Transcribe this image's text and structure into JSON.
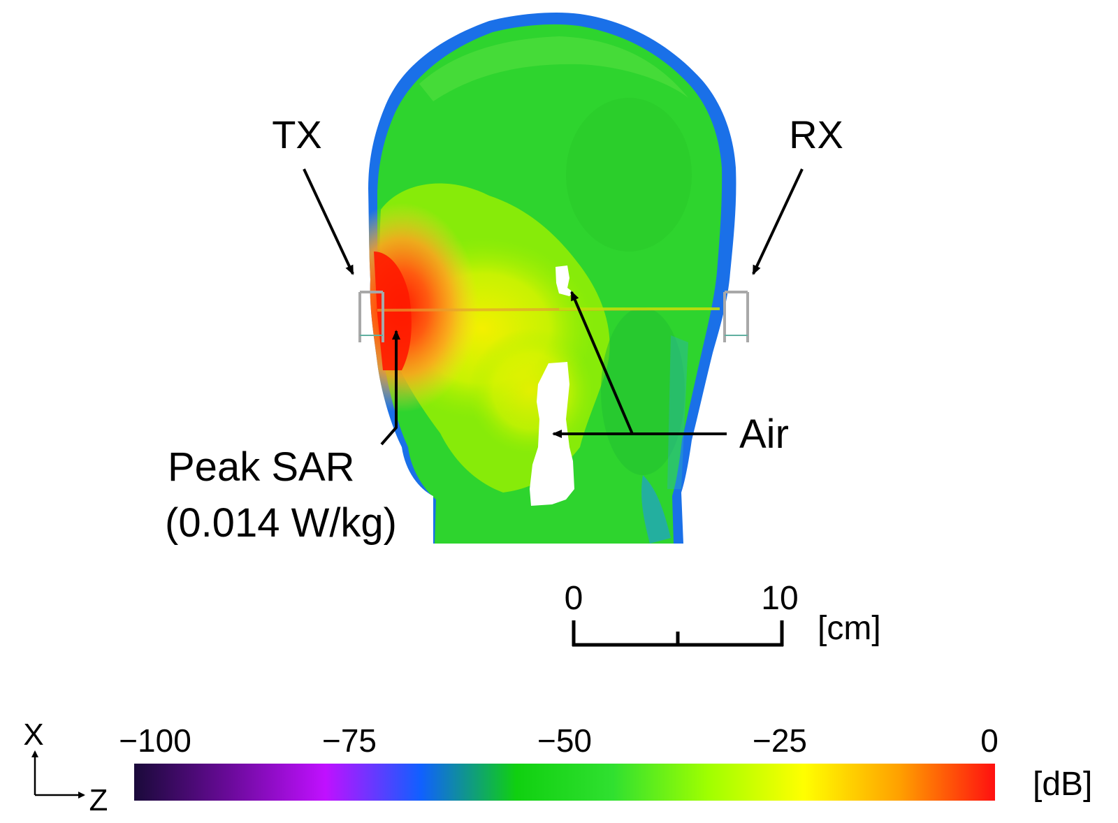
{
  "labels": {
    "tx": "TX",
    "rx": "RX",
    "air": "Air",
    "peak_line1": "Peak SAR",
    "peak_line2": "(0.014 W/kg)"
  },
  "scale_bar": {
    "start_label": "0",
    "end_label": "10",
    "unit": "[cm]"
  },
  "axes": {
    "x_label": "X",
    "z_label": "Z"
  },
  "colorbar": {
    "unit": "[dB]",
    "ticks": [
      "−100",
      "−75",
      "−50",
      "−25",
      "0"
    ],
    "min": -100,
    "max": 0,
    "colors": [
      "#1a0a3a",
      "#6a0a9a",
      "#c010ff",
      "#1060ff",
      "#10d010",
      "#30e030",
      "#a0ff00",
      "#ffff00",
      "#ffa000",
      "#ff1010"
    ]
  },
  "heatmap_colors": {
    "blue": "#1a70e8",
    "green": "#2ed42e",
    "bright_green": "#55e000",
    "yellow_green": "#b8f000",
    "yellow": "#f2f000",
    "orange": "#ffa020",
    "red": "#ff1a00"
  }
}
